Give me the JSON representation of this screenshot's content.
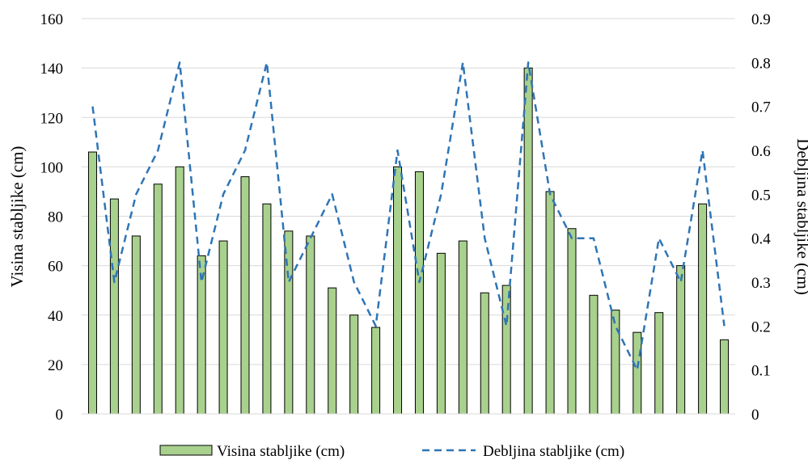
{
  "chart_data": {
    "type": "bar",
    "categories": [
      "",
      "",
      "",
      "",
      "",
      "",
      "",
      "",
      "",
      "",
      "",
      "",
      "",
      "",
      "",
      "",
      "",
      "",
      "",
      "",
      "",
      "",
      "",
      "",
      "",
      "",
      "",
      "",
      "",
      ""
    ],
    "series": [
      {
        "name": "Visina stabljike (cm)",
        "type": "bar",
        "axis": "left",
        "color": "#a9d18e",
        "values": [
          106,
          87,
          72,
          93,
          100,
          64,
          70,
          96,
          85,
          74,
          72,
          51,
          40,
          35,
          100,
          98,
          65,
          70,
          49,
          52,
          140,
          90,
          75,
          48,
          42,
          33,
          41,
          60,
          85,
          30
        ]
      },
      {
        "name": "Debljina stabljike (cm)",
        "type": "line",
        "style": "dashed",
        "axis": "right",
        "color": "#2e75b6",
        "values": [
          0.7,
          0.3,
          0.5,
          0.6,
          0.8,
          0.3,
          0.5,
          0.6,
          0.8,
          0.3,
          0.4,
          0.5,
          0.3,
          0.2,
          0.6,
          0.3,
          0.5,
          0.8,
          0.4,
          0.2,
          0.8,
          0.5,
          0.4,
          0.4,
          0.2,
          0.1,
          0.4,
          0.3,
          0.6,
          0.2
        ]
      }
    ],
    "ylabel": "Visina stabljike (cm)",
    "y2label": "Debljina stabljike (cm)",
    "ylim": [
      0,
      160
    ],
    "y2lim": [
      0,
      0.9
    ],
    "yticks": [
      "0",
      "20",
      "40",
      "60",
      "80",
      "100",
      "120",
      "140",
      "160"
    ],
    "y2ticks": [
      "0",
      "0.1",
      "0.2",
      "0.3",
      "0.4",
      "0.5",
      "0.6",
      "0.7",
      "0.8",
      "0.9"
    ],
    "grid": true,
    "legend_position": "bottom"
  }
}
